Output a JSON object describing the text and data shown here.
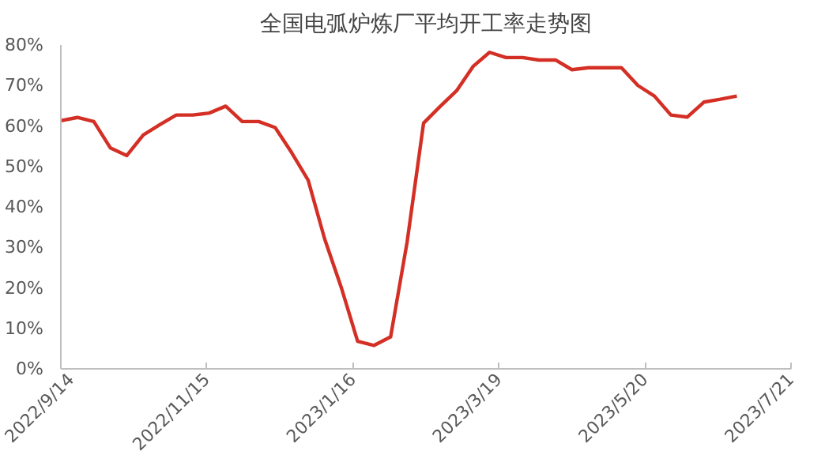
{
  "chart_data": {
    "type": "line",
    "title": "全国电弧炉炼厂平均开工率走势图",
    "x": [
      "2022-09-14",
      "2022-09-21",
      "2022-09-28",
      "2022-10-05",
      "2022-10-12",
      "2022-10-19",
      "2022-10-26",
      "2022-11-02",
      "2022-11-09",
      "2022-11-16",
      "2022-11-23",
      "2022-11-30",
      "2022-12-07",
      "2022-12-14",
      "2022-12-21",
      "2022-12-28",
      "2023-01-04",
      "2023-01-11",
      "2023-01-18",
      "2023-01-25",
      "2023-02-01",
      "2023-02-08",
      "2023-02-15",
      "2023-02-22",
      "2023-03-01",
      "2023-03-08",
      "2023-03-15",
      "2023-03-22",
      "2023-03-29",
      "2023-04-05",
      "2023-04-12",
      "2023-04-19",
      "2023-04-26",
      "2023-05-03",
      "2023-05-10",
      "2023-05-17",
      "2023-05-24",
      "2023-05-31",
      "2023-06-07",
      "2023-06-14",
      "2023-06-21",
      "2023-06-28"
    ],
    "series": [
      {
        "color": "#d42f25",
        "values": [
          61.3,
          62.1,
          61.1,
          54.6,
          52.7,
          57.8,
          60.3,
          62.7,
          62.7,
          63.2,
          64.9,
          61.1,
          61.1,
          59.6,
          53.4,
          46.6,
          32.1,
          20.2,
          6.8,
          5.8,
          7.9,
          31.3,
          60.7,
          64.8,
          68.7,
          74.7,
          78.2,
          76.9,
          76.9,
          76.3,
          76.3,
          73.9,
          74.4,
          74.4,
          74.4,
          70.0,
          67.4,
          62.7,
          62.2,
          65.9,
          66.6,
          67.4
        ]
      }
    ],
    "xlim": [
      "2022-09-14",
      "2023-07-21"
    ],
    "xticks": [
      {
        "value": "2022-09-14",
        "label": "2022/9/14"
      },
      {
        "value": "2022-11-15",
        "label": "2022/11/15"
      },
      {
        "value": "2023-01-16",
        "label": "2023/1/16"
      },
      {
        "value": "2023-03-19",
        "label": "2023/3/19"
      },
      {
        "value": "2023-05-20",
        "label": "2023/5/20"
      },
      {
        "value": "2023-07-21",
        "label": "2023/7/21"
      }
    ],
    "ylim": [
      0,
      80
    ],
    "yticks": [
      {
        "value": 0,
        "label": "0%"
      },
      {
        "value": 10,
        "label": "10%"
      },
      {
        "value": 20,
        "label": "20%"
      },
      {
        "value": 30,
        "label": "30%"
      },
      {
        "value": 40,
        "label": "40%"
      },
      {
        "value": 50,
        "label": "50%"
      },
      {
        "value": 60,
        "label": "60%"
      },
      {
        "value": 70,
        "label": "70%"
      },
      {
        "value": 80,
        "label": "80%"
      }
    ],
    "grid": false,
    "marker": "none",
    "line_style": "solid"
  }
}
